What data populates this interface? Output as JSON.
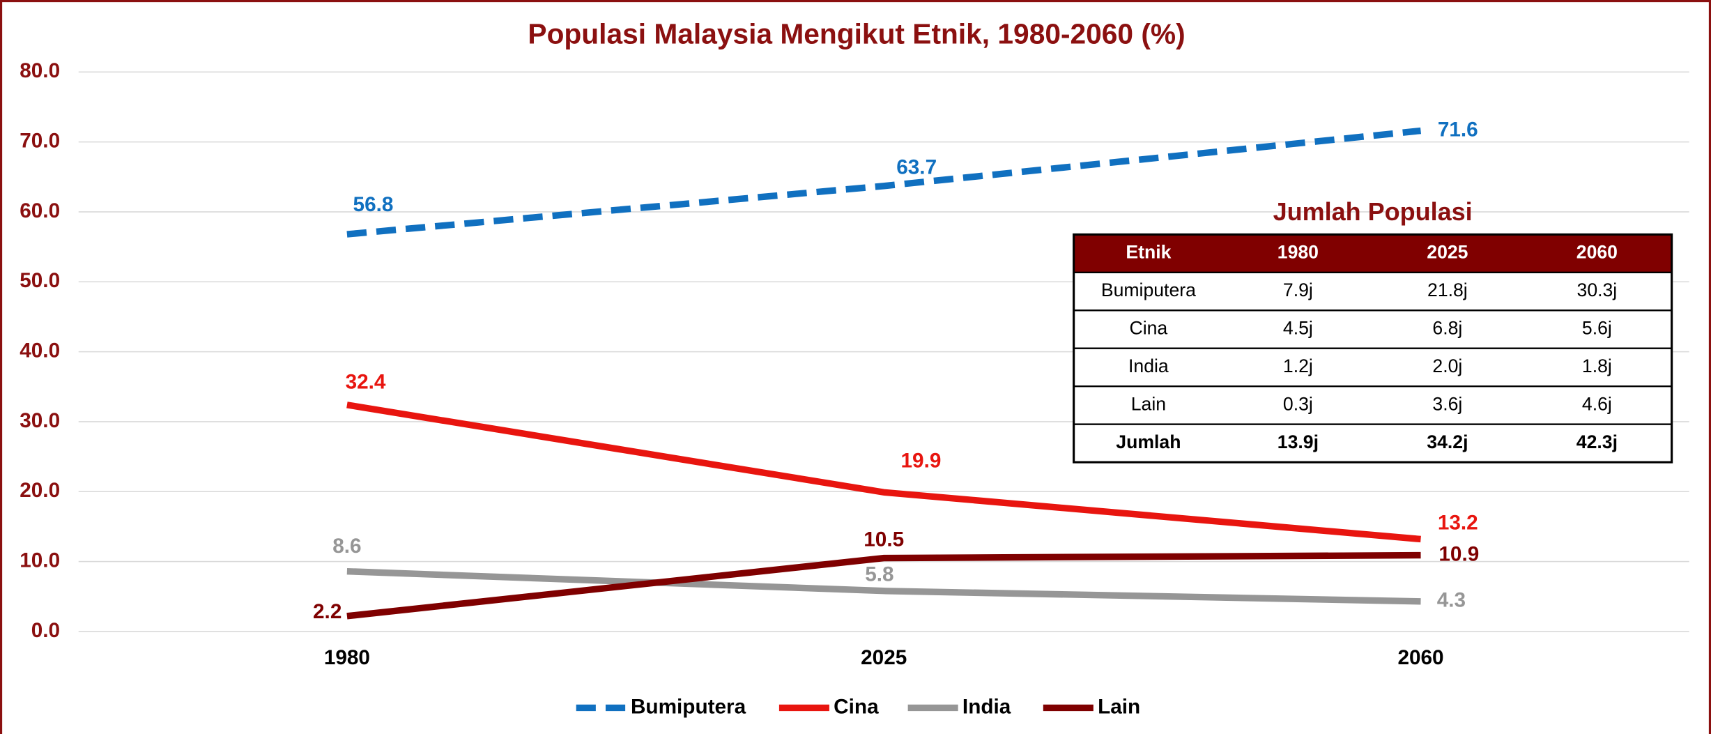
{
  "chart_data": {
    "type": "line",
    "title": "Populasi Malaysia Mengikut Etnik, 1980-2060 (%)",
    "categories": [
      "1980",
      "2025",
      "2060"
    ],
    "series": [
      {
        "name": "Bumiputera",
        "color": "#1070c0",
        "dashed": true,
        "values": [
          56.8,
          63.7,
          71.6
        ]
      },
      {
        "name": "Cina",
        "color": "#e8150f",
        "values": [
          32.4,
          19.9,
          13.2
        ]
      },
      {
        "name": "India",
        "color": "#969696",
        "values": [
          8.6,
          5.8,
          4.3
        ]
      },
      {
        "name": "Lain",
        "color": "#7f0000",
        "values": [
          2.2,
          10.5,
          10.9
        ]
      }
    ],
    "ylim": [
      0,
      80
    ],
    "yticks": [
      {
        "value": 0,
        "label": "0.0"
      },
      {
        "value": 10,
        "label": "10.0"
      },
      {
        "value": 20,
        "label": "20.0"
      },
      {
        "value": 30,
        "label": "30.0"
      },
      {
        "value": 40,
        "label": "40.0"
      },
      {
        "value": 50,
        "label": "50.0"
      },
      {
        "value": 60,
        "label": "60.0"
      },
      {
        "value": 70,
        "label": "70.0"
      },
      {
        "value": 80,
        "label": "80.0"
      }
    ],
    "grid": true,
    "legend": "bottom"
  },
  "table": {
    "title": "Jumlah Populasi",
    "header": [
      "Etnik",
      "1980",
      "2025",
      "2060"
    ],
    "rows": [
      [
        "Bumiputera",
        "7.9j",
        "21.8j",
        "30.3j"
      ],
      [
        "Cina",
        "4.5j",
        "6.8j",
        "5.6j"
      ],
      [
        "India",
        "1.2j",
        "2.0j",
        "1.8j"
      ],
      [
        "Lain",
        "0.3j",
        "3.6j",
        "4.6j"
      ],
      [
        "Jumlah",
        "13.9j",
        "34.2j",
        "42.3j"
      ]
    ]
  }
}
